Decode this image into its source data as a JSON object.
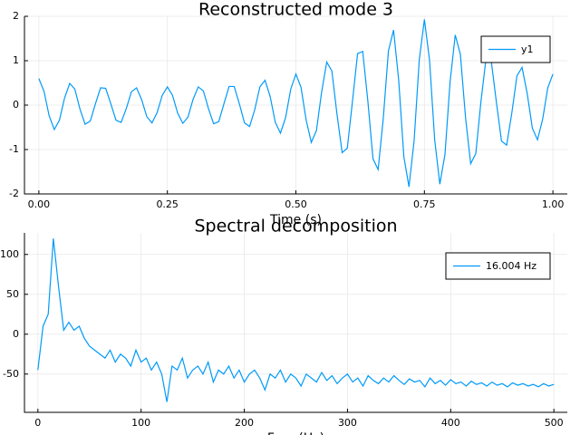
{
  "chart_data": [
    {
      "type": "line",
      "title": "Reconstructed mode 3",
      "x_label": "Time (s)",
      "x": [
        0,
        0.01,
        0.02,
        0.03,
        0.04,
        0.05,
        0.06,
        0.07,
        0.08,
        0.09,
        0.1,
        0.11,
        0.12,
        0.13,
        0.14,
        0.15,
        0.16,
        0.17,
        0.18,
        0.19,
        0.2,
        0.21,
        0.22,
        0.23,
        0.24,
        0.25,
        0.26,
        0.27,
        0.28,
        0.29,
        0.3,
        0.31,
        0.32,
        0.33,
        0.34,
        0.35,
        0.36,
        0.37,
        0.38,
        0.39,
        0.4,
        0.41,
        0.42,
        0.43,
        0.44,
        0.45,
        0.46,
        0.47,
        0.48,
        0.49,
        0.5,
        0.51,
        0.52,
        0.53,
        0.54,
        0.55,
        0.56,
        0.57,
        0.58,
        0.59,
        0.6,
        0.61,
        0.62,
        0.63,
        0.64,
        0.65,
        0.66,
        0.67,
        0.68,
        0.69,
        0.7,
        0.71,
        0.72,
        0.73,
        0.74,
        0.75,
        0.76,
        0.77,
        0.78,
        0.79,
        0.8,
        0.81,
        0.82,
        0.83,
        0.84,
        0.85,
        0.86,
        0.87,
        0.88,
        0.89,
        0.9,
        0.91,
        0.92,
        0.93,
        0.94,
        0.95,
        0.96,
        0.97,
        0.98,
        0.99,
        1
      ],
      "series": [
        {
          "name": "y1",
          "color": "#009af9",
          "values": [
            0.6,
            0.31,
            -0.24,
            -0.55,
            -0.34,
            0.16,
            0.49,
            0.36,
            -0.09,
            -0.43,
            -0.36,
            0.03,
            0.39,
            0.38,
            0.03,
            -0.34,
            -0.39,
            -0.08,
            0.3,
            0.39,
            0.12,
            -0.26,
            -0.4,
            -0.17,
            0.22,
            0.41,
            0.22,
            -0.18,
            -0.41,
            -0.27,
            0.13,
            0.41,
            0.32,
            -0.08,
            -0.42,
            -0.37,
            0.03,
            0.42,
            0.42,
            0.03,
            -0.4,
            -0.48,
            -0.1,
            0.41,
            0.56,
            0.19,
            -0.39,
            -0.63,
            -0.28,
            0.36,
            0.7,
            0.4,
            -0.34,
            -0.84,
            -0.57,
            0.29,
            0.97,
            0.77,
            -0.21,
            -1.07,
            -0.97,
            0.08,
            1.16,
            1.21,
            0.09,
            -1.21,
            -1.45,
            -0.3,
            1.22,
            1.69,
            0.56,
            -1.16,
            -1.84,
            -0.8,
            1.02,
            1.93,
            1.01,
            -0.78,
            -1.78,
            -1.11,
            0.53,
            1.58,
            1.14,
            -0.28,
            -1.32,
            -1.09,
            0.08,
            1.06,
            1,
            0.07,
            -0.81,
            -0.9,
            -0.18,
            0.66,
            0.85,
            0.26,
            -0.52,
            -0.78,
            -0.32,
            0.39,
            0.7
          ]
        }
      ],
      "xlim": [
        -0.028,
        1.028
      ],
      "xticks": [
        {
          "value": 0,
          "label": "0.00"
        },
        {
          "value": 0.25,
          "label": "0.25"
        },
        {
          "value": 0.5,
          "label": "0.50"
        },
        {
          "value": 0.75,
          "label": "0.75"
        },
        {
          "value": 1,
          "label": "1.00"
        }
      ],
      "ylim": [
        -2,
        2
      ],
      "yticks": [
        -2,
        -1,
        0,
        1,
        2
      ],
      "grid": true,
      "legend": "top-right"
    },
    {
      "type": "line",
      "title": "Spectral decomposition",
      "x_label": "Freq (Hz)",
      "x": [
        0,
        5,
        10,
        15,
        20,
        25,
        30,
        35,
        40,
        45,
        50,
        55,
        60,
        65,
        70,
        75,
        80,
        85,
        90,
        95,
        100,
        105,
        110,
        115,
        120,
        125,
        130,
        135,
        140,
        145,
        150,
        155,
        160,
        165,
        170,
        175,
        180,
        185,
        190,
        195,
        200,
        205,
        210,
        215,
        220,
        225,
        230,
        235,
        240,
        245,
        250,
        255,
        260,
        265,
        270,
        275,
        280,
        285,
        290,
        295,
        300,
        305,
        310,
        315,
        320,
        325,
        330,
        335,
        340,
        345,
        350,
        355,
        360,
        365,
        370,
        375,
        380,
        385,
        390,
        395,
        400,
        405,
        410,
        415,
        420,
        425,
        430,
        435,
        440,
        445,
        450,
        455,
        460,
        465,
        470,
        475,
        480,
        485,
        490,
        495,
        500
      ],
      "series": [
        {
          "name": "16.004 Hz",
          "color": "#009af9",
          "values": [
            -45,
            10,
            25,
            120,
            60,
            5,
            15,
            5,
            10,
            -5,
            -15,
            -20,
            -25,
            -30,
            -20,
            -35,
            -25,
            -30,
            -40,
            -20,
            -35,
            -30,
            -45,
            -35,
            -50,
            -85,
            -40,
            -45,
            -30,
            -55,
            -45,
            -40,
            -50,
            -35,
            -60,
            -45,
            -50,
            -40,
            -55,
            -45,
            -60,
            -50,
            -45,
            -55,
            -70,
            -50,
            -55,
            -45,
            -60,
            -50,
            -55,
            -65,
            -50,
            -55,
            -60,
            -48,
            -58,
            -52,
            -62,
            -55,
            -50,
            -60,
            -55,
            -65,
            -52,
            -58,
            -62,
            -55,
            -60,
            -52,
            -58,
            -63,
            -56,
            -60,
            -58,
            -66,
            -55,
            -62,
            -58,
            -64,
            -57,
            -62,
            -60,
            -65,
            -59,
            -63,
            -61,
            -65,
            -60,
            -64,
            -62,
            -66,
            -61,
            -64,
            -62,
            -65,
            -63,
            -66,
            -62,
            -65,
            -63
          ]
        }
      ],
      "xlim": [
        -13,
        513
      ],
      "xticks": [
        0,
        100,
        200,
        300,
        400,
        500
      ],
      "ylim": [
        -98,
        127
      ],
      "yticks": [
        -50,
        0,
        50,
        100
      ],
      "grid": true,
      "legend": "top-right"
    }
  ]
}
